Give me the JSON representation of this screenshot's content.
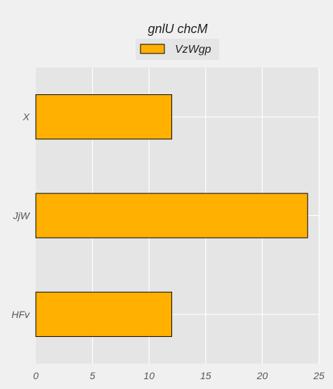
{
  "chart_data": {
    "type": "bar",
    "orientation": "horizontal",
    "title": "gnlU chcM",
    "categories": [
      "X",
      "JjW",
      "HFv"
    ],
    "series": [
      {
        "name": "VzWgp",
        "values": [
          12,
          24,
          12
        ],
        "color": "#ffb000"
      }
    ],
    "xlim": [
      0,
      25
    ],
    "xticks": [
      0,
      5,
      10,
      15,
      20,
      25
    ],
    "xlabel": "",
    "ylabel": "",
    "grid": true,
    "legend": "top-center",
    "colors": {
      "plot_bg": "#e5e5e5",
      "page_bg": "#f0f0f0",
      "grid": "#ffffff",
      "bar_edge": "#000000"
    }
  }
}
